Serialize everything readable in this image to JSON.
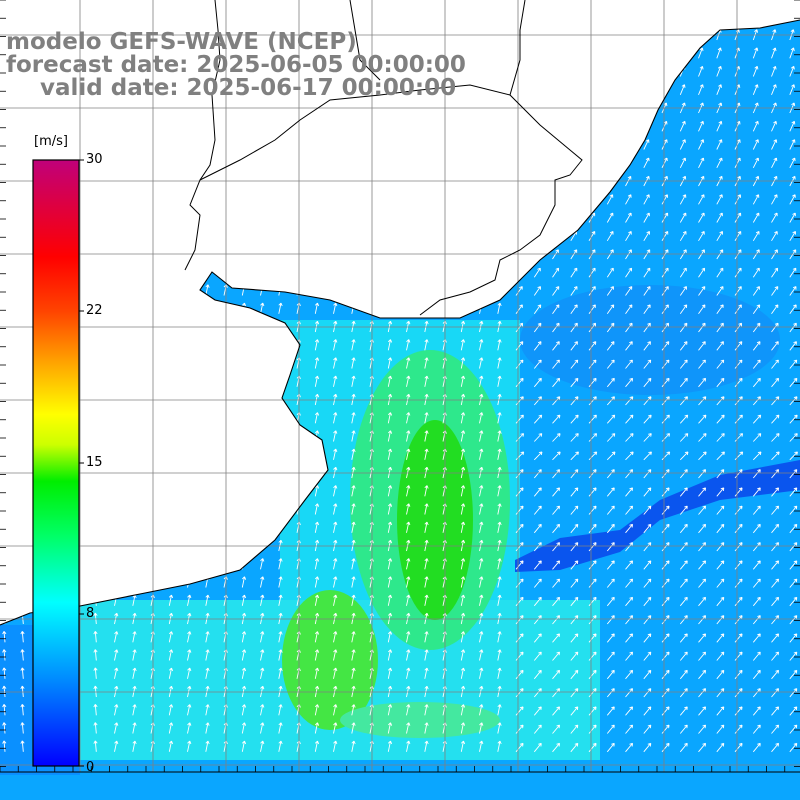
{
  "title": {
    "line1": "modelo GEFS-WAVE (NCEP)",
    "line2": "forecast date: 2025-06-05 00:00:00",
    "line3": "valid date: 2025-06-17 00:00:00"
  },
  "colorbar": {
    "unit": "[m/s]",
    "ticks": [
      "30",
      "22",
      "15",
      "8",
      "0"
    ],
    "colors": [
      "#0000ff",
      "#0088ff",
      "#00e5ff",
      "#00ff66",
      "#00ee00",
      "#aaff00",
      "#ffff00",
      "#ffaa00",
      "#ff5500",
      "#ff0000",
      "#e00040",
      "#c0007a"
    ]
  },
  "colors": {
    "land": "#ffffff",
    "coast": "#000000",
    "grid": "#808080",
    "arrow": "#ffffff",
    "title_text": "#808080"
  }
}
